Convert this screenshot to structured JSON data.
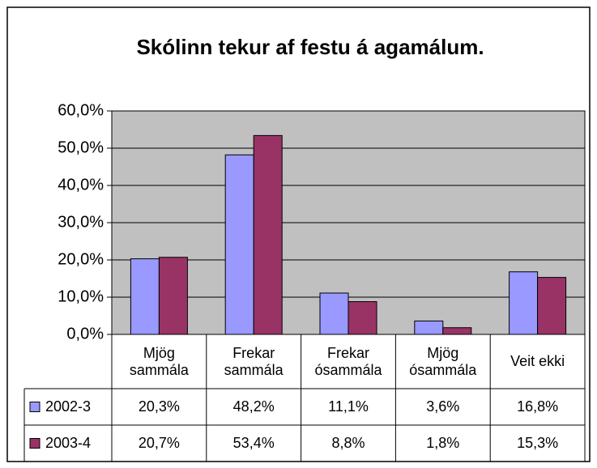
{
  "chart_data": {
    "type": "bar",
    "title": "Skólinn tekur af festu á agamálum.",
    "categories": [
      "Mjög sammála",
      "Frekar sammála",
      "Frekar ósammála",
      "Mjög ósammála",
      "Veit ekki"
    ],
    "series": [
      {
        "name": "2002-3",
        "color": "#9999ff",
        "values": [
          20.3,
          48.2,
          11.1,
          3.6,
          16.8
        ],
        "value_labels": [
          "20,3%",
          "48,2%",
          "11,1%",
          "3,6%",
          "16,8%"
        ]
      },
      {
        "name": "2003-4",
        "color": "#993366",
        "values": [
          20.7,
          53.4,
          8.8,
          1.8,
          15.3
        ],
        "value_labels": [
          "20,7%",
          "53,4%",
          "8,8%",
          "1,8%",
          "15,3%"
        ]
      }
    ],
    "ylim": [
      0,
      60
    ],
    "yticks": [
      {
        "value": 0,
        "label": "0,0%"
      },
      {
        "value": 10,
        "label": "10,0%"
      },
      {
        "value": 20,
        "label": "20,0%"
      },
      {
        "value": 30,
        "label": "30,0%"
      },
      {
        "value": 40,
        "label": "40,0%"
      },
      {
        "value": 50,
        "label": "50,0%"
      },
      {
        "value": 60,
        "label": "60,0%"
      }
    ],
    "grid": true,
    "plot_background": "#c0c0c0"
  }
}
